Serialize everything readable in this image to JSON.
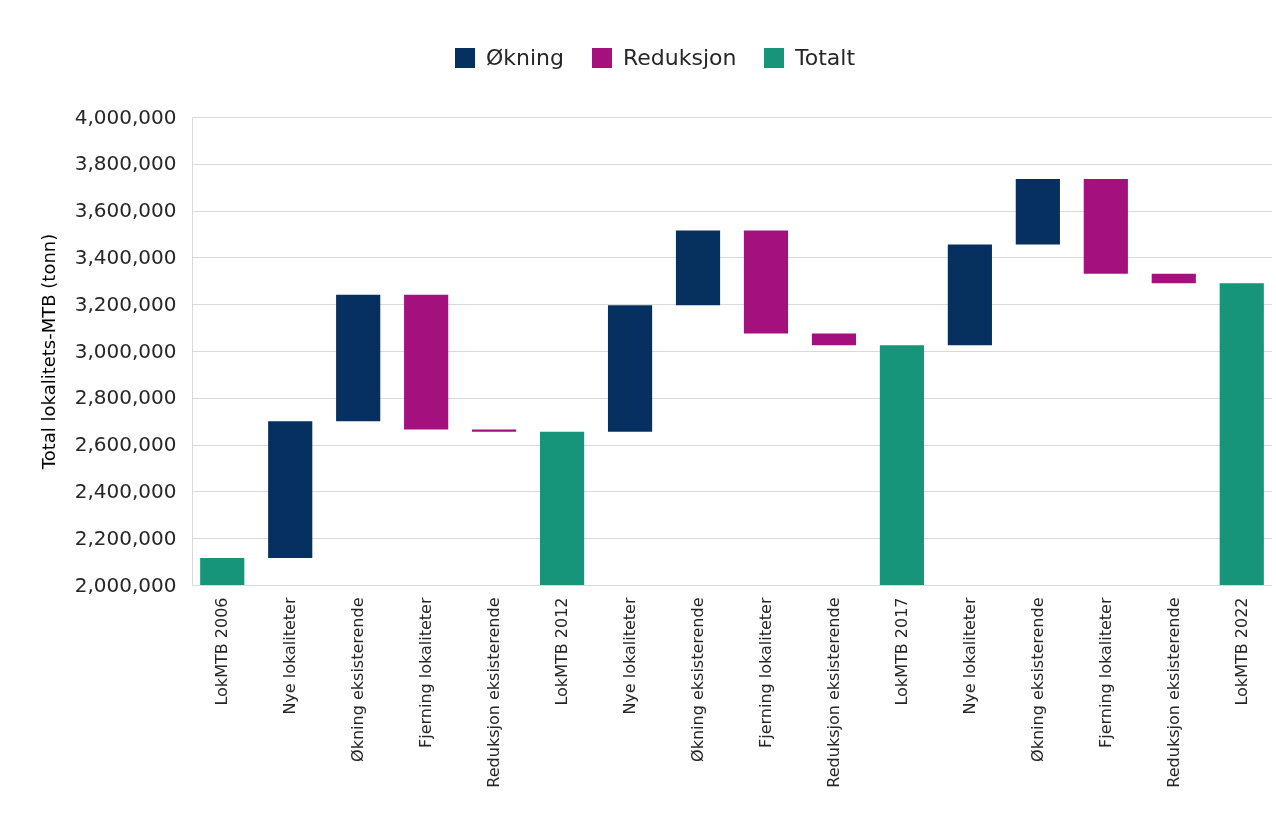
{
  "chart_data": {
    "type": "bar",
    "categories": [
      "LokMTB 2006",
      "Nye lokaliteter",
      "Økning eksisterende",
      "Fjerning lokaliteter",
      "Reduksjon eksisterende",
      "LokMTB 2012",
      "Nye lokaliteter",
      "Økning eksisterende",
      "Fjerning lokaliteter",
      "Reduksjon eksisterende",
      "LokMTB 2017",
      "Nye lokaliteter",
      "Økning eksisterende",
      "Fjerning lokaliteter",
      "Reduksjon eksisterende",
      "LokMTB 2022"
    ],
    "series": [
      {
        "name": "Økning",
        "color": "#06305f",
        "values": [
          null,
          585000,
          540000,
          null,
          null,
          null,
          540000,
          320000,
          null,
          null,
          null,
          430000,
          280000,
          null,
          null,
          null
        ],
        "base": [
          null,
          2115000,
          2700000,
          null,
          null,
          null,
          2655000,
          3195000,
          null,
          null,
          null,
          3025000,
          3455000,
          null,
          null,
          null
        ]
      },
      {
        "name": "Reduksjon",
        "color": "#a4107e",
        "values": [
          null,
          null,
          null,
          -575000,
          -10000,
          null,
          null,
          null,
          -440000,
          -50000,
          null,
          null,
          null,
          -405000,
          -40000,
          null
        ],
        "base": [
          null,
          null,
          null,
          3240000,
          2665000,
          null,
          null,
          null,
          3515000,
          3075000,
          null,
          null,
          null,
          3735000,
          3330000,
          null
        ]
      },
      {
        "name": "Totalt",
        "color": "#16957a",
        "values": [
          2115000,
          null,
          null,
          null,
          null,
          2655000,
          null,
          null,
          null,
          null,
          3025000,
          null,
          null,
          null,
          null,
          3290000
        ]
      }
    ],
    "ylabel": "Total lokalitets-MTB (tonn)",
    "ylim": [
      2000000,
      4000000
    ],
    "yticks": [
      {
        "value": 2000000,
        "label": "2,000,000"
      },
      {
        "value": 2200000,
        "label": "2,200,000"
      },
      {
        "value": 2400000,
        "label": "2,400,000"
      },
      {
        "value": 2600000,
        "label": "2,600,000"
      },
      {
        "value": 2800000,
        "label": "2,800,000"
      },
      {
        "value": 3000000,
        "label": "3,000,000"
      },
      {
        "value": 3200000,
        "label": "3,200,000"
      },
      {
        "value": 3400000,
        "label": "3,400,000"
      },
      {
        "value": 3600000,
        "label": "3,600,000"
      },
      {
        "value": 3800000,
        "label": "3,800,000"
      },
      {
        "value": 4000000,
        "label": "4,000,000"
      }
    ],
    "grid": "y",
    "legend": "top"
  }
}
